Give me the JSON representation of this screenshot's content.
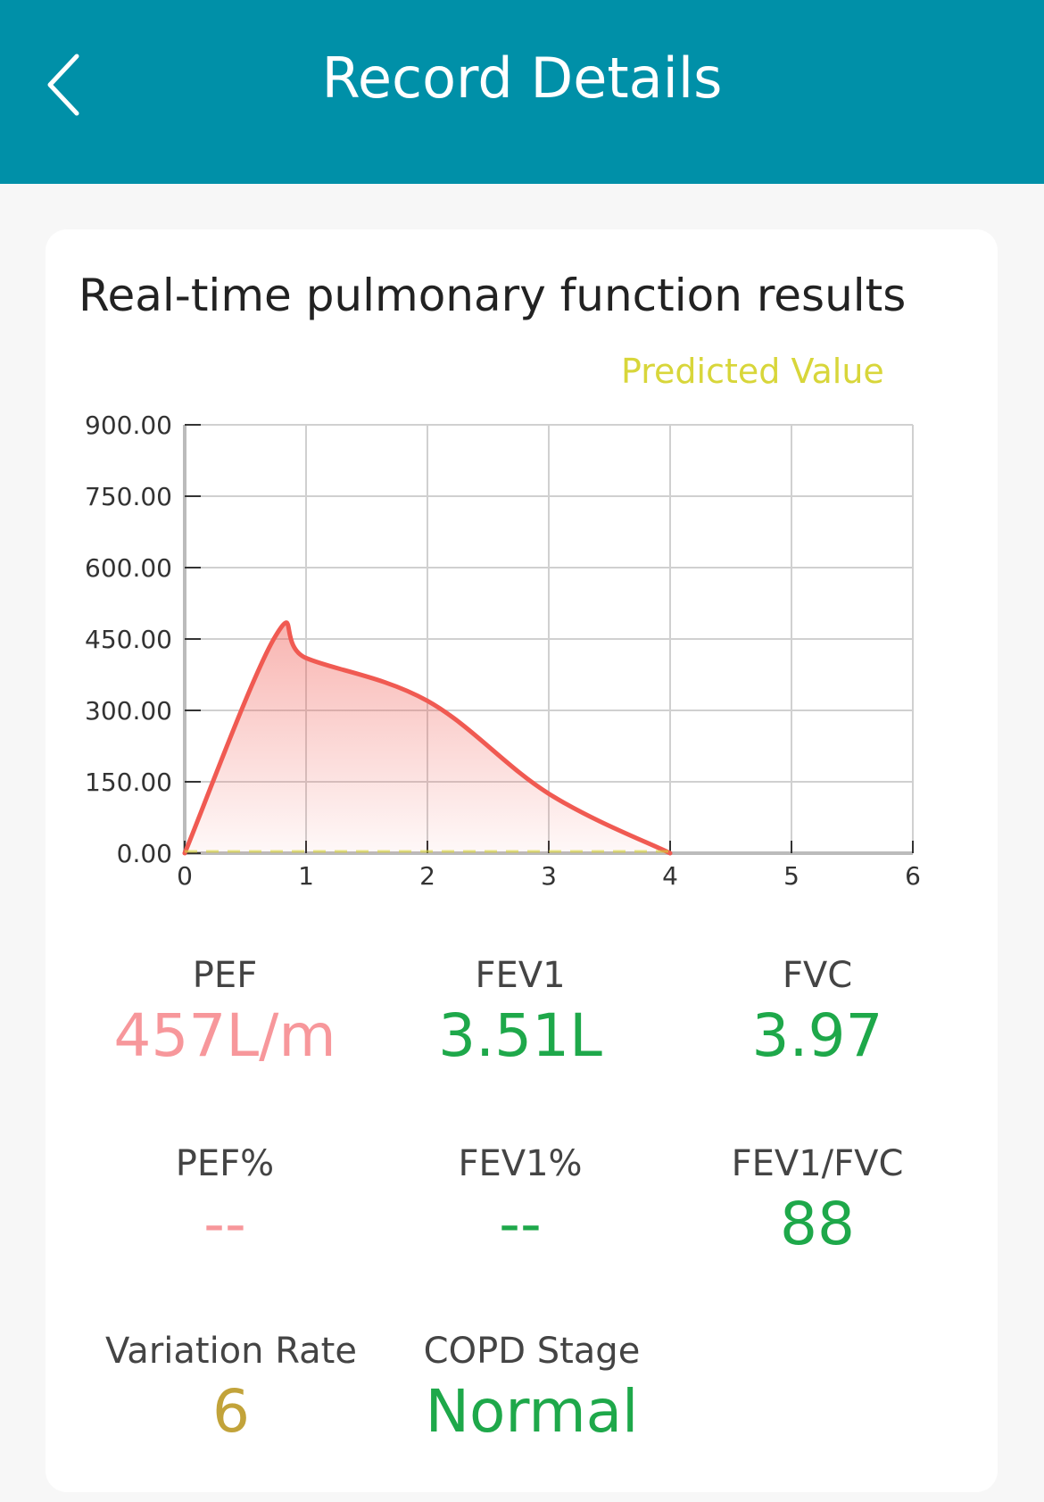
{
  "header": {
    "title": "Record Details",
    "back_icon": "chevron-left-icon",
    "background": "#0090a8"
  },
  "card": {
    "title": "Real-time pulmonary function results",
    "legend": "Predicted Value",
    "legend_color": "#d8d63a"
  },
  "chart_data": {
    "type": "area",
    "x": [
      0,
      0.75,
      1,
      2,
      3,
      4
    ],
    "values": [
      0,
      457,
      410,
      320,
      125,
      0
    ],
    "xlim": [
      0,
      6
    ],
    "ylim": [
      0,
      900
    ],
    "x_ticks": [
      "0",
      "1",
      "2",
      "3",
      "4",
      "5",
      "6"
    ],
    "y_ticks": [
      "0.00",
      "150.00",
      "300.00",
      "450.00",
      "600.00",
      "750.00",
      "900.00"
    ],
    "line_color": "#f05a52",
    "grid": true,
    "legend_position": "top-right"
  },
  "metrics": {
    "pef": {
      "label": "PEF",
      "value": "457L/m",
      "color": "#f7979b"
    },
    "fev1": {
      "label": "FEV1",
      "value": "3.51L",
      "color": "#1ea84a"
    },
    "fvc": {
      "label": "FVC",
      "value": "3.97",
      "color": "#1ea84a"
    },
    "pef_pct": {
      "label": "PEF%",
      "value": "--",
      "color": "#f7979b"
    },
    "fev1_pct": {
      "label": "FEV1%",
      "value": "--",
      "color": "#1ea84a"
    },
    "fev1_fvc": {
      "label": "FEV1/FVC",
      "value": "88",
      "color": "#1ea84a"
    },
    "variation": {
      "label": "Variation Rate",
      "value": "6",
      "color": "#c2a33a"
    },
    "copd": {
      "label": "COPD Stage",
      "value": "Normal",
      "color": "#1ea84a"
    }
  }
}
